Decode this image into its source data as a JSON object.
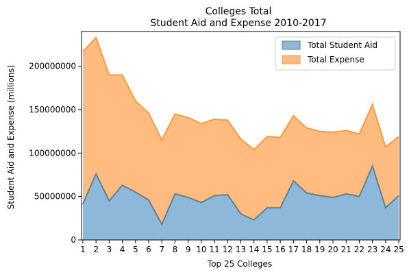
{
  "chart_data": {
    "type": "area",
    "title": "Colleges Total",
    "subtitle": "Student Aid and Expense 2010-2017",
    "xlabel": "Top 25 Colleges",
    "ylabel": "Student Aid and Expense (millions)",
    "x": [
      1,
      2,
      3,
      4,
      5,
      6,
      7,
      8,
      9,
      10,
      11,
      12,
      13,
      14,
      15,
      16,
      17,
      18,
      19,
      20,
      21,
      22,
      23,
      24,
      25
    ],
    "x_tick_labels": [
      "1",
      "2",
      "3",
      "4",
      "5",
      "6",
      "7",
      "8",
      "9",
      "10",
      "11",
      "12",
      "13",
      "14",
      "15",
      "16",
      "17",
      "18",
      "19",
      "20",
      "21",
      "22",
      "23",
      "24",
      "25"
    ],
    "xlim": [
      0.9,
      25.1
    ],
    "ylim": [
      0,
      240000000
    ],
    "y_ticks": [
      0,
      50000000,
      100000000,
      150000000,
      200000000
    ],
    "y_tick_labels": [
      "0",
      "50000000",
      "100000000",
      "150000000",
      "200000000"
    ],
    "stacked": true,
    "grid": false,
    "legend_position": "top-right",
    "series": [
      {
        "name": "Total Student Aid",
        "fill_color": "#8db8d9",
        "line_color": "#5f7f93",
        "values": [
          41000000,
          76000000,
          45000000,
          63000000,
          55000000,
          46000000,
          18000000,
          53000000,
          49000000,
          43000000,
          51000000,
          52000000,
          30000000,
          23000000,
          37000000,
          37000000,
          68000000,
          54000000,
          51000000,
          49000000,
          53000000,
          50000000,
          85000000,
          37000000,
          51000000
        ]
      },
      {
        "name": "Total Expense",
        "fill_color": "#ffbb80",
        "line_color": "#ff9a3a",
        "values": [
          176000000,
          157000000,
          145000000,
          127000000,
          105000000,
          100000000,
          97000000,
          92000000,
          92000000,
          91000000,
          88000000,
          86000000,
          86000000,
          81000000,
          82000000,
          81000000,
          75000000,
          75000000,
          74000000,
          75000000,
          73000000,
          72000000,
          71000000,
          70000000,
          68000000
        ]
      }
    ]
  }
}
